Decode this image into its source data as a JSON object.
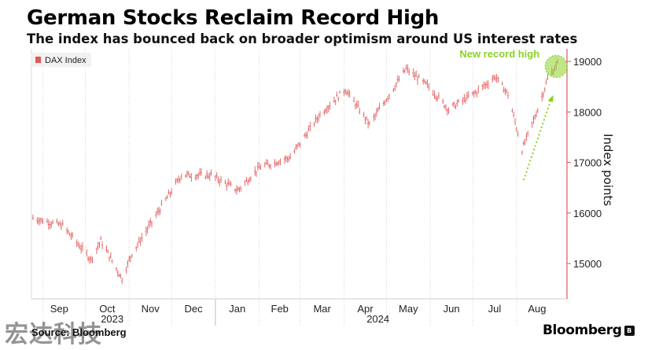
{
  "title": "German Stocks Reclaim Record High",
  "subtitle": "The index has bounced back on broader optimism around US interest rates",
  "footer": {
    "source": "Source: Bloomberg",
    "brand": "Bloomberg",
    "watermark": "宏达科技"
  },
  "chart_data": {
    "type": "line",
    "style": "ohlc-bars",
    "title": "German Stocks Reclaim Record High",
    "subtitle": "The index has bounced back on broader optimism around US interest rates",
    "ylabel": "Index points",
    "y_axis_side": "right",
    "ylim": [
      14300,
      19250
    ],
    "yticks": [
      15000,
      16000,
      17000,
      18000,
      19000
    ],
    "ytick_labels": [
      "15000",
      "16000",
      "17000",
      "18000",
      "19000"
    ],
    "x_months": [
      "Sep",
      "Oct",
      "Nov",
      "Dec",
      "Jan",
      "Feb",
      "Mar",
      "Apr",
      "May",
      "Jun",
      "Jul",
      "Aug"
    ],
    "x_years": [
      "2023",
      "2024"
    ],
    "legend": {
      "label": "DAX Index",
      "placement": "top-left",
      "color": "#e05a5a"
    },
    "grid": "vertical-dotted",
    "annotation": {
      "text": "New record high",
      "color": "#8cd12a"
    },
    "colors": {
      "series": "#e05a5a",
      "annotation": "#8cd12a",
      "marker": "#e0604a"
    },
    "series": [
      {
        "name": "DAX Index",
        "x": [
          "2023-08-25",
          "2023-09-15",
          "2023-10-05",
          "2023-10-12",
          "2023-10-27",
          "2023-11-03",
          "2023-11-20",
          "2023-12-08",
          "2023-12-29",
          "2024-01-17",
          "2024-02-01",
          "2024-02-23",
          "2024-03-15",
          "2024-04-02",
          "2024-04-19",
          "2024-05-15",
          "2024-05-31",
          "2024-06-14",
          "2024-07-04",
          "2024-07-17",
          "2024-07-26",
          "2024-08-05",
          "2024-08-16",
          "2024-08-23",
          "2024-08-30"
        ],
        "values": [
          15900,
          15750,
          15080,
          15450,
          14700,
          15200,
          15950,
          16750,
          16750,
          16450,
          16900,
          17100,
          17950,
          18450,
          17750,
          18850,
          18500,
          18050,
          18400,
          18700,
          18350,
          17250,
          18050,
          18650,
          18950
        ]
      }
    ]
  }
}
